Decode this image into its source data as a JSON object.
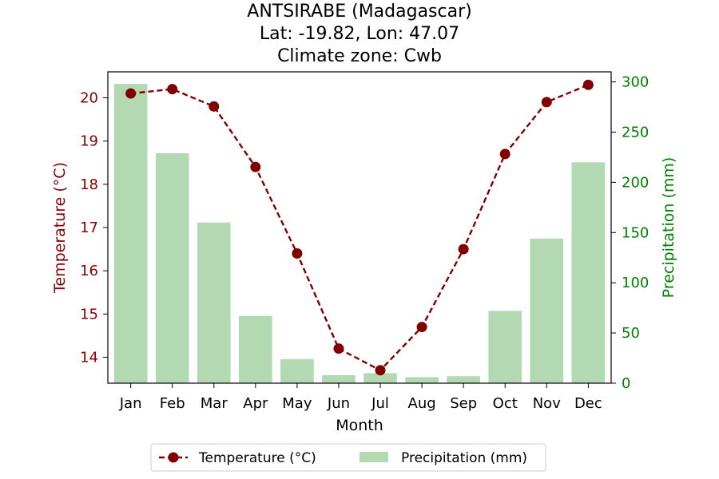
{
  "chart_data": {
    "type": "bar+line",
    "title_lines": [
      "ANTSIRABE (Madagascar)",
      "Lat: -19.82, Lon: 47.07",
      "Climate zone: Cwb"
    ],
    "xlabel": "Month",
    "categories": [
      "Jan",
      "Feb",
      "Mar",
      "Apr",
      "May",
      "Jun",
      "Jul",
      "Aug",
      "Sep",
      "Oct",
      "Nov",
      "Dec"
    ],
    "series": [
      {
        "name": "Temperature (°C)",
        "type": "line",
        "axis": "left",
        "color": "#800000",
        "style": "dashed",
        "marker": "circle",
        "values": [
          20.1,
          20.2,
          19.8,
          18.4,
          16.4,
          14.2,
          13.7,
          14.7,
          16.5,
          18.7,
          19.9,
          20.3
        ]
      },
      {
        "name": "Precipitation (mm)",
        "type": "bar",
        "axis": "right",
        "color": "#b2d9b2",
        "values": [
          298,
          229,
          160,
          67,
          24,
          8,
          10,
          6,
          7,
          72,
          144,
          220
        ]
      }
    ],
    "y_left": {
      "label": "Temperature (°C)",
      "color": "#8b0000",
      "range": [
        13.4,
        20.6
      ],
      "ticks": [
        14,
        15,
        16,
        17,
        18,
        19,
        20
      ]
    },
    "y_right": {
      "label": "Precipitation (mm)",
      "color": "#008000",
      "range": [
        0,
        310
      ],
      "ticks": [
        0,
        50,
        100,
        150,
        200,
        250,
        300
      ]
    },
    "grid": false,
    "legend_position": "bottom-center"
  }
}
